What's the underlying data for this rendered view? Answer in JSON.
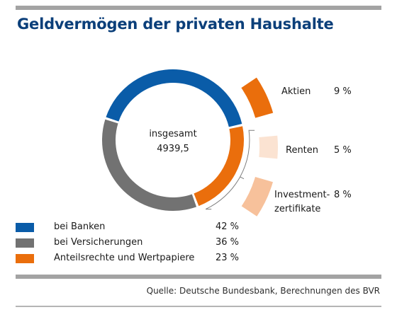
{
  "chart_data": {
    "type": "pie",
    "title": "Geldvermögen der privaten Haushalte",
    "center_label": [
      "insgesamt",
      "4939,5"
    ],
    "series": [
      {
        "name": "bei Banken",
        "value": 42,
        "value_label": "42 %",
        "color": "#0a5ca8"
      },
      {
        "name": "bei Versicherungen",
        "value": 36,
        "value_label": "36 %",
        "color": "#727272"
      },
      {
        "name": "Anteilsrechte und Wertpapiere",
        "value": 23,
        "value_label": "23 %",
        "color": "#ea6e0c"
      }
    ],
    "breakdown": {
      "parent": "Anteilsrechte und Wertpapiere",
      "items": [
        {
          "name": "Aktien",
          "value": 9,
          "value_label": "9 %",
          "color": "#ea6e0c"
        },
        {
          "name": "Renten",
          "value": 5,
          "value_label": "5 %",
          "color": "#fbe3d2"
        },
        {
          "name": "Investment-\nzertifikate",
          "value": 8,
          "value_label": "8 %",
          "color": "#f7c19b"
        }
      ]
    },
    "legend_placement": "bottom-left",
    "source": "Quelle: Deutsche Bundesbank, Berechnungen des BVR"
  }
}
